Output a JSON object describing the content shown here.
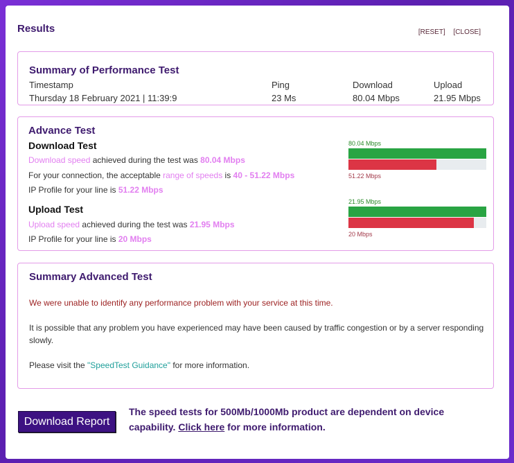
{
  "header": {
    "title": "Results",
    "reset_label": "[RESET]",
    "close_label": "[CLOSE]"
  },
  "summary": {
    "title": "Summary of Performance Test",
    "columns": {
      "timestamp": "Timestamp",
      "ping": "Ping",
      "download": "Download",
      "upload": "Upload"
    },
    "values": {
      "timestamp": "Thursday 18 February 2021 | 11:39:9",
      "ping": "23 Ms",
      "download": "80.04 Mbps",
      "upload": "21.95 Mbps"
    }
  },
  "advance": {
    "title": "Advance Test",
    "download": {
      "heading": "Download Test",
      "l1_link": "Download speed",
      "l1_mid": " achieved during the test was ",
      "l1_val": "80.04 Mbps",
      "l2_pre": "For your connection, the acceptable ",
      "l2_link": "range of speeds",
      "l2_mid": " is ",
      "l2_val": "40 - 51.22 Mbps",
      "l3_pre": "IP Profile for your line is ",
      "l3_val": "51.22 Mbps",
      "bar_top_label": "80.04 Mbps",
      "bar_top_fraction": 1.0,
      "bar_bottom_label": "51.22 Mbps",
      "bar_bottom_fraction": 0.64
    },
    "upload": {
      "heading": "Upload Test",
      "l1_link": "Upload speed",
      "l1_mid": " achieved during the test was ",
      "l1_val": "21.95 Mbps",
      "l2_pre": "IP Profile for your line is ",
      "l2_val": "20 Mbps",
      "bar_top_label": "21.95 Mbps",
      "bar_top_fraction": 1.0,
      "bar_bottom_label": "20 Mbps",
      "bar_bottom_fraction": 0.91
    }
  },
  "advanced_summary": {
    "title": "Summary Advanced Test",
    "msg1": "We were unable to identify any performance problem with your service at this time.",
    "msg2": "It is possible that any problem you have experienced may have been caused by traffic congestion or by a server responding slowly.",
    "msg3_pre": "Please visit the ",
    "msg3_link": "\"SpeedTest Guidance\"",
    "msg3_post": " for more information."
  },
  "footer": {
    "download_button": "Download Report",
    "note_pre": "The speed tests for 500Mb/1000Mb product are dependent on device capability. ",
    "note_link": "Click here",
    "note_post": " for more information."
  },
  "colors": {
    "accent": "#3e1a6e",
    "highlight": "#e27ff0",
    "bar_green": "#29a443",
    "bar_red": "#dc3545",
    "border": "#e39be8"
  }
}
